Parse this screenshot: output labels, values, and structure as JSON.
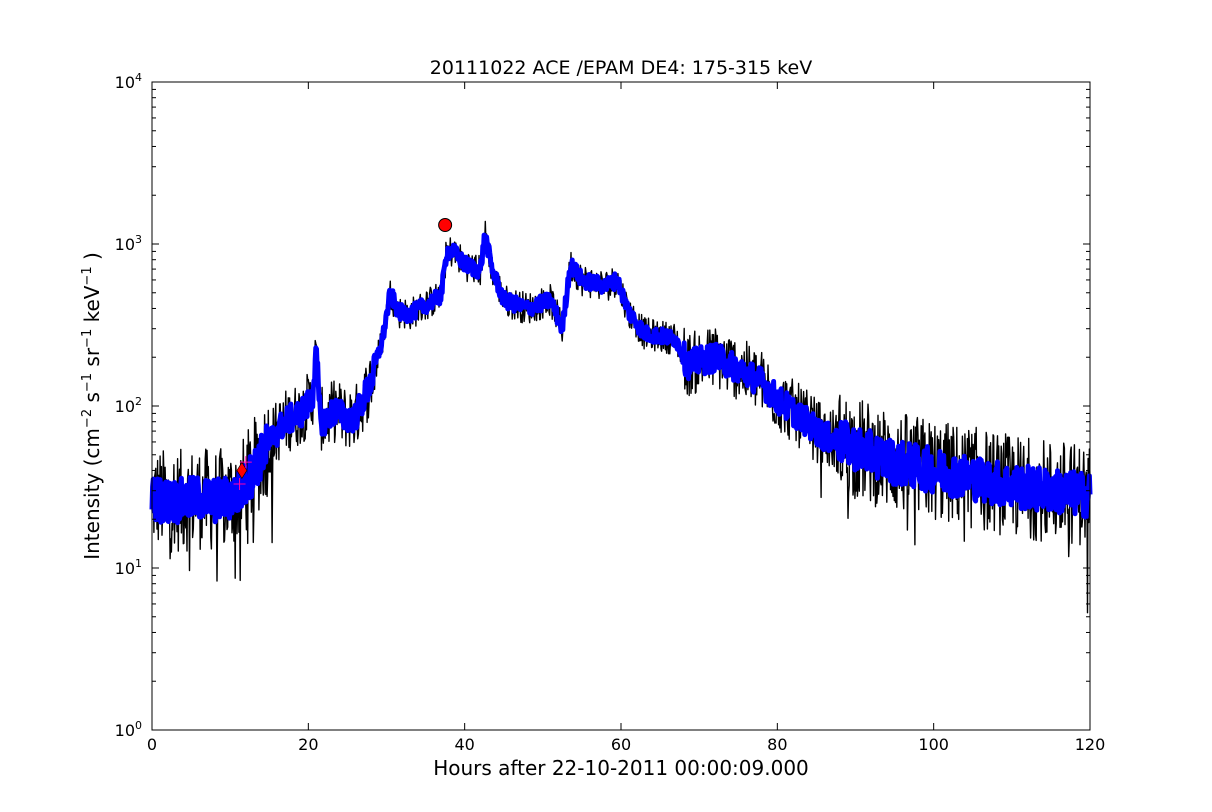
{
  "chart_data": {
    "type": "line",
    "title": "20111022 ACE /EPAM DE4: 175-315 keV",
    "xlabel": "Hours after 22-10-2011 00:00:09.000",
    "ylabel_parts": [
      "Intensity (cm",
      "−2",
      " s",
      "−1",
      " sr",
      "−1",
      " keV",
      "−1",
      " )"
    ],
    "xlim": [
      0,
      120
    ],
    "ylim": [
      1,
      10000
    ],
    "yscale": "log",
    "grid": false,
    "x_ticks": [
      0,
      20,
      40,
      60,
      80,
      100,
      120
    ],
    "x_tick_labels": [
      "0",
      "20",
      "40",
      "60",
      "80",
      "100",
      "120"
    ],
    "y_ticks": [
      1,
      10,
      100,
      1000,
      10000
    ],
    "y_tick_bases": [
      "10",
      "10",
      "10",
      "10",
      "10"
    ],
    "y_tick_exponents": [
      "0",
      "1",
      "2",
      "3",
      "4"
    ],
    "series": [
      {
        "color": "#000000",
        "style": "noisy-envelope",
        "x": [
          0,
          2,
          4,
          6,
          8,
          10,
          11.5,
          13,
          15,
          17,
          19,
          20.5,
          21,
          21.5,
          22,
          23.5,
          24.5,
          26,
          28,
          29.5,
          30.5,
          31.5,
          33,
          35,
          37,
          37.7,
          38.5,
          40,
          42,
          42.6,
          43.5,
          45,
          48,
          51,
          52.5,
          53.5,
          55,
          58,
          59.5,
          61,
          63,
          67,
          68.5,
          72,
          75,
          78,
          80,
          83,
          86,
          90,
          95,
          100,
          105,
          110,
          115,
          120
        ],
        "y": [
          27,
          26,
          26,
          27,
          26,
          27,
          30,
          40,
          60,
          80,
          90,
          110,
          220,
          85,
          80,
          95,
          85,
          85,
          140,
          260,
          500,
          380,
          370,
          420,
          480,
          900,
          900,
          750,
          680,
          1150,
          700,
          450,
          400,
          450,
          300,
          750,
          600,
          550,
          600,
          380,
          280,
          260,
          180,
          200,
          170,
          140,
          110,
          85,
          65,
          55,
          45,
          40,
          36,
          32,
          30,
          28
        ]
      },
      {
        "color": "#0000ff",
        "style": "thick-line",
        "x": [
          0,
          2,
          4,
          6,
          8,
          10,
          11.5,
          13,
          15,
          17,
          19,
          20.5,
          21,
          21.5,
          22,
          23.5,
          24.5,
          26,
          28,
          29.5,
          30.5,
          31.5,
          33,
          35,
          37,
          37.7,
          38.5,
          40,
          42,
          42.6,
          43.5,
          45,
          48,
          51,
          52.5,
          53.5,
          55,
          58,
          59.5,
          61,
          63,
          67,
          68.5,
          72,
          75,
          78,
          80,
          83,
          86,
          90,
          95,
          100,
          105,
          110,
          115,
          120
        ],
        "y": [
          27,
          26,
          26,
          27,
          26,
          27,
          30,
          40,
          60,
          80,
          90,
          110,
          220,
          85,
          80,
          95,
          85,
          85,
          140,
          260,
          500,
          380,
          370,
          420,
          480,
          900,
          900,
          750,
          680,
          1150,
          700,
          450,
          400,
          450,
          300,
          750,
          600,
          550,
          600,
          380,
          280,
          260,
          180,
          200,
          170,
          140,
          110,
          85,
          65,
          55,
          45,
          40,
          36,
          32,
          30,
          28
        ]
      }
    ],
    "markers": [
      {
        "shape": "circle",
        "x": 37.5,
        "y": 1310,
        "color": "#ff0000"
      },
      {
        "shape": "diamond",
        "x": 11.5,
        "y": 40,
        "color": "#ff0000"
      },
      {
        "shape": "plus",
        "x": 11.2,
        "y": 33,
        "color": "#ff00aa"
      },
      {
        "shape": "plus",
        "x": 12.0,
        "y": 45,
        "color": "#ff00aa"
      }
    ]
  }
}
